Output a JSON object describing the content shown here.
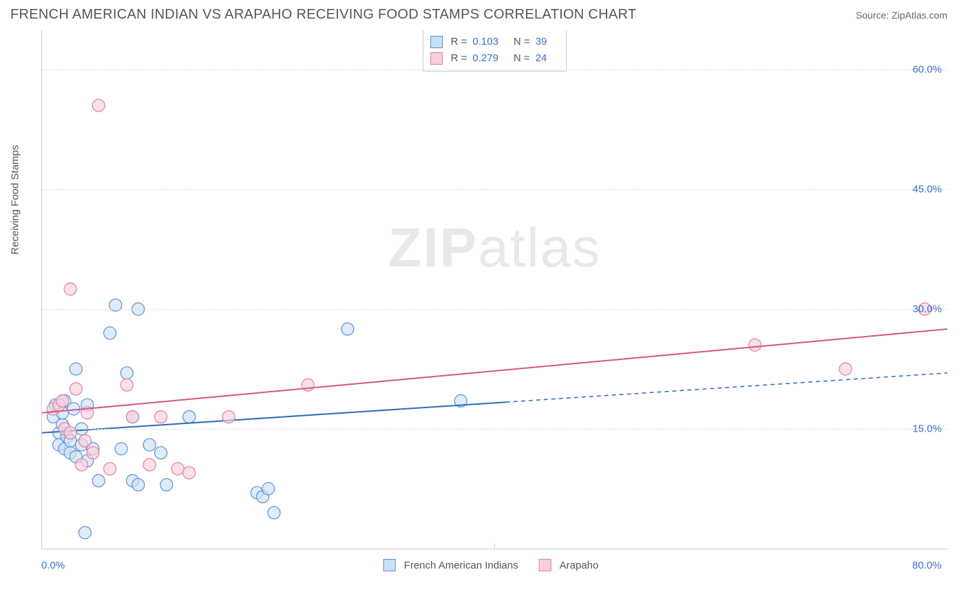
{
  "header": {
    "title": "FRENCH AMERICAN INDIAN VS ARAPAHO RECEIVING FOOD STAMPS CORRELATION CHART",
    "source": "Source: ZipAtlas.com"
  },
  "chart": {
    "type": "scatter",
    "ylabel": "Receiving Food Stamps",
    "watermark_a": "ZIP",
    "watermark_b": "atlas",
    "xlim": [
      0,
      80
    ],
    "ylim": [
      0,
      65
    ],
    "xtick_labels": [
      "0.0%",
      "80.0%"
    ],
    "xtick_pos": [
      0,
      80
    ],
    "x_midtick": 40,
    "ytick_labels": [
      "15.0%",
      "30.0%",
      "45.0%",
      "60.0%"
    ],
    "ytick_pos": [
      15,
      30,
      45,
      60
    ],
    "grid_color": "#dddddd",
    "background_color": "#ffffff",
    "axis_color": "#cccccc",
    "tick_label_color": "#3b6fc9",
    "series": [
      {
        "name": "French American Indians",
        "fill": "#cce0f5",
        "stroke": "#5b8fd6",
        "line_color": "#2b6cb0",
        "r_value": "0.103",
        "n_value": "39",
        "points": [
          [
            1.0,
            16.5
          ],
          [
            1.2,
            18.0
          ],
          [
            1.5,
            14.5
          ],
          [
            1.5,
            13.0
          ],
          [
            1.8,
            15.5
          ],
          [
            2.0,
            18.5
          ],
          [
            2.0,
            12.5
          ],
          [
            2.2,
            14.0
          ],
          [
            2.5,
            12.0
          ],
          [
            2.5,
            13.5
          ],
          [
            3.0,
            11.5
          ],
          [
            3.0,
            22.5
          ],
          [
            3.5,
            15.0
          ],
          [
            3.5,
            13.0
          ],
          [
            3.8,
            2.0
          ],
          [
            4.0,
            11.0
          ],
          [
            4.5,
            12.5
          ],
          [
            5.0,
            8.5
          ],
          [
            6.0,
            27.0
          ],
          [
            6.5,
            30.5
          ],
          [
            7.0,
            12.5
          ],
          [
            7.5,
            22.0
          ],
          [
            8.0,
            16.5
          ],
          [
            8.0,
            8.5
          ],
          [
            8.5,
            30.0
          ],
          [
            8.5,
            8.0
          ],
          [
            9.5,
            13.0
          ],
          [
            10.5,
            12.0
          ],
          [
            11.0,
            8.0
          ],
          [
            13.0,
            16.5
          ],
          [
            19.0,
            7.0
          ],
          [
            19.5,
            6.5
          ],
          [
            20.0,
            7.5
          ],
          [
            20.5,
            4.5
          ],
          [
            27.0,
            27.5
          ],
          [
            37.0,
            18.5
          ],
          [
            1.8,
            17.0
          ],
          [
            2.8,
            17.5
          ],
          [
            4.0,
            18.0
          ]
        ],
        "trend": {
          "y_at_xmin": 14.5,
          "y_at_xmax": 22.0,
          "solid_until_x": 41
        }
      },
      {
        "name": "Arapaho",
        "fill": "#f8d0db",
        "stroke": "#e37ba0",
        "line_color": "#d6548a",
        "r_value": "0.279",
        "n_value": "24",
        "points": [
          [
            1.0,
            17.5
          ],
          [
            1.5,
            18.0
          ],
          [
            1.8,
            18.5
          ],
          [
            2.0,
            15.0
          ],
          [
            2.5,
            14.5
          ],
          [
            2.5,
            32.5
          ],
          [
            3.0,
            20.0
          ],
          [
            3.5,
            10.5
          ],
          [
            3.8,
            13.5
          ],
          [
            4.5,
            12.0
          ],
          [
            5.0,
            55.5
          ],
          [
            6.0,
            10.0
          ],
          [
            7.5,
            20.5
          ],
          [
            8.0,
            16.5
          ],
          [
            9.5,
            10.5
          ],
          [
            10.5,
            16.5
          ],
          [
            12.0,
            10.0
          ],
          [
            13.0,
            9.5
          ],
          [
            16.5,
            16.5
          ],
          [
            23.5,
            20.5
          ],
          [
            63.0,
            25.5
          ],
          [
            71.0,
            22.5
          ],
          [
            78.0,
            30.0
          ],
          [
            4.0,
            17.0
          ]
        ],
        "trend": {
          "y_at_xmin": 17.0,
          "y_at_xmax": 27.5,
          "solid_until_x": 80
        }
      }
    ],
    "legend_labels": [
      "French American Indians",
      "Arapaho"
    ],
    "marker_radius": 9,
    "marker_opacity": 0.65,
    "line_width": 2
  }
}
